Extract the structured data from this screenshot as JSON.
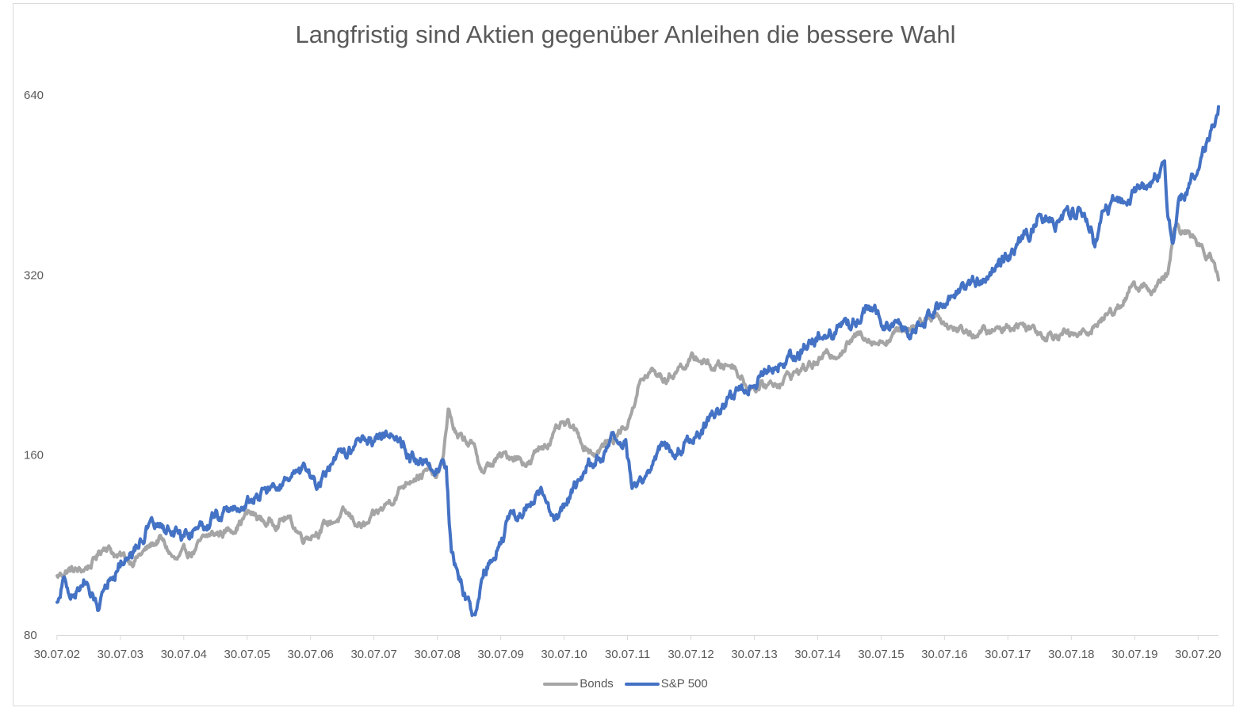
{
  "chart_data": {
    "type": "line",
    "title": "Langfristig sind Aktien gegenüber Anleihen die bessere Wahl",
    "xlabel": "",
    "ylabel": "",
    "y_scale": "log2",
    "ylim": [
      80,
      640
    ],
    "y_ticks": [
      "80",
      "160",
      "320",
      "640"
    ],
    "x_ticks": [
      "30.07.02",
      "30.07.03",
      "30.07.04",
      "30.07.05",
      "30.07.06",
      "30.07.07",
      "30.07.08",
      "30.07.09",
      "30.07.10",
      "30.07.11",
      "30.07.12",
      "30.07.13",
      "30.07.14",
      "30.07.15",
      "30.07.16",
      "30.07.17",
      "30.07.18",
      "30.07.19",
      "30.07.20"
    ],
    "x_range_years": [
      2002.58,
      2020.9
    ],
    "grid": false,
    "legend_position": "bottom",
    "series": [
      {
        "name": "Bonds",
        "color": "#a5a5a5",
        "points": [
          [
            2002.58,
            100
          ],
          [
            2002.75,
            103
          ],
          [
            2002.95,
            102
          ],
          [
            2003.15,
            106
          ],
          [
            2003.35,
            114
          ],
          [
            2003.55,
            108
          ],
          [
            2003.75,
            107
          ],
          [
            2004.0,
            111
          ],
          [
            2004.2,
            116
          ],
          [
            2004.45,
            106
          ],
          [
            2004.7,
            110
          ],
          [
            2005.0,
            117
          ],
          [
            2005.3,
            120
          ],
          [
            2005.6,
            128
          ],
          [
            2005.9,
            123
          ],
          [
            2006.2,
            126
          ],
          [
            2006.45,
            117
          ],
          [
            2006.8,
            122
          ],
          [
            2007.1,
            127
          ],
          [
            2007.45,
            121
          ],
          [
            2007.7,
            129
          ],
          [
            2007.95,
            139
          ],
          [
            2008.2,
            149
          ],
          [
            2008.45,
            150
          ],
          [
            2008.55,
            146
          ],
          [
            2008.65,
            152
          ],
          [
            2008.75,
            190
          ],
          [
            2008.9,
            170
          ],
          [
            2009.1,
            168
          ],
          [
            2009.3,
            150
          ],
          [
            2009.55,
            158
          ],
          [
            2009.8,
            160
          ],
          [
            2010.05,
            155
          ],
          [
            2010.2,
            165
          ],
          [
            2010.4,
            172
          ],
          [
            2010.55,
            178
          ],
          [
            2010.7,
            177
          ],
          [
            2010.85,
            168
          ],
          [
            2011.05,
            162
          ],
          [
            2011.3,
            168
          ],
          [
            2011.45,
            175
          ],
          [
            2011.6,
            182
          ],
          [
            2011.75,
            210
          ],
          [
            2011.95,
            220
          ],
          [
            2012.2,
            214
          ],
          [
            2012.45,
            228
          ],
          [
            2012.7,
            232
          ],
          [
            2012.95,
            224
          ],
          [
            2013.25,
            228
          ],
          [
            2013.45,
            210
          ],
          [
            2013.7,
            208
          ],
          [
            2014.0,
            214
          ],
          [
            2014.3,
            222
          ],
          [
            2014.6,
            230
          ],
          [
            2014.85,
            238
          ],
          [
            2015.1,
            248
          ],
          [
            2015.3,
            256
          ],
          [
            2015.55,
            248
          ],
          [
            2015.8,
            256
          ],
          [
            2016.05,
            264
          ],
          [
            2016.25,
            272
          ],
          [
            2016.45,
            276
          ],
          [
            2016.6,
            266
          ],
          [
            2016.8,
            260
          ],
          [
            2017.1,
            256
          ],
          [
            2017.4,
            258
          ],
          [
            2017.7,
            266
          ],
          [
            2017.95,
            262
          ],
          [
            2018.2,
            256
          ],
          [
            2018.45,
            258
          ],
          [
            2018.6,
            252
          ],
          [
            2018.8,
            256
          ],
          [
            2019.0,
            268
          ],
          [
            2019.3,
            282
          ],
          [
            2019.5,
            302
          ],
          [
            2019.7,
            306
          ],
          [
            2019.9,
            302
          ],
          [
            2020.1,
            318
          ],
          [
            2020.2,
            380
          ],
          [
            2020.4,
            375
          ],
          [
            2020.6,
            362
          ],
          [
            2020.75,
            350
          ],
          [
            2020.85,
            328
          ],
          [
            2020.9,
            314
          ]
        ]
      },
      {
        "name": "S&P 500",
        "color": "#4472c4",
        "points": [
          [
            2002.58,
            90
          ],
          [
            2002.68,
            100
          ],
          [
            2002.78,
            92
          ],
          [
            2002.88,
            95
          ],
          [
            2003.0,
            99
          ],
          [
            2003.12,
            92
          ],
          [
            2003.22,
            89
          ],
          [
            2003.35,
            99
          ],
          [
            2003.55,
            106
          ],
          [
            2003.75,
            110
          ],
          [
            2004.0,
            121
          ],
          [
            2004.3,
            121
          ],
          [
            2004.55,
            117
          ],
          [
            2004.8,
            123
          ],
          [
            2005.05,
            126
          ],
          [
            2005.3,
            129
          ],
          [
            2005.55,
            132
          ],
          [
            2005.8,
            138
          ],
          [
            2006.05,
            142
          ],
          [
            2006.35,
            146
          ],
          [
            2006.55,
            148
          ],
          [
            2006.65,
            142
          ],
          [
            2006.9,
            152
          ],
          [
            2007.2,
            163
          ],
          [
            2007.45,
            174
          ],
          [
            2007.6,
            170
          ],
          [
            2007.85,
            178
          ],
          [
            2008.05,
            168
          ],
          [
            2008.3,
            154
          ],
          [
            2008.45,
            152
          ],
          [
            2008.6,
            155
          ],
          [
            2008.72,
            150
          ],
          [
            2008.8,
            108
          ],
          [
            2008.95,
            100
          ],
          [
            2009.15,
            84
          ],
          [
            2009.3,
            103
          ],
          [
            2009.5,
            113
          ],
          [
            2009.7,
            124
          ],
          [
            2009.95,
            131
          ],
          [
            2010.2,
            138
          ],
          [
            2010.35,
            127
          ],
          [
            2010.55,
            128
          ],
          [
            2010.75,
            140
          ],
          [
            2011.0,
            156
          ],
          [
            2011.2,
            160
          ],
          [
            2011.4,
            168
          ],
          [
            2011.55,
            165
          ],
          [
            2011.65,
            139
          ],
          [
            2011.8,
            143
          ],
          [
            2011.95,
            155
          ],
          [
            2012.2,
            168
          ],
          [
            2012.4,
            168
          ],
          [
            2012.7,
            176
          ],
          [
            2012.9,
            183
          ],
          [
            2013.15,
            196
          ],
          [
            2013.4,
            207
          ],
          [
            2013.7,
            221
          ],
          [
            2014.0,
            232
          ],
          [
            2014.3,
            240
          ],
          [
            2014.6,
            252
          ],
          [
            2014.8,
            254
          ],
          [
            2015.1,
            268
          ],
          [
            2015.3,
            276
          ],
          [
            2015.55,
            277
          ],
          [
            2015.7,
            265
          ],
          [
            2015.85,
            270
          ],
          [
            2016.1,
            254
          ],
          [
            2016.35,
            278
          ],
          [
            2016.55,
            291
          ],
          [
            2016.75,
            294
          ],
          [
            2016.95,
            305
          ],
          [
            2017.2,
            320
          ],
          [
            2017.5,
            340
          ],
          [
            2017.75,
            358
          ],
          [
            2017.95,
            384
          ],
          [
            2018.1,
            412
          ],
          [
            2018.2,
            395
          ],
          [
            2018.35,
            396
          ],
          [
            2018.6,
            410
          ],
          [
            2018.75,
            415
          ],
          [
            2018.9,
            392
          ],
          [
            2018.95,
            356
          ],
          [
            2019.1,
            410
          ],
          [
            2019.35,
            428
          ],
          [
            2019.55,
            436
          ],
          [
            2019.8,
            456
          ],
          [
            2019.95,
            478
          ],
          [
            2020.05,
            483
          ],
          [
            2020.1,
            402
          ],
          [
            2020.17,
            362
          ],
          [
            2020.28,
            418
          ],
          [
            2020.45,
            458
          ],
          [
            2020.6,
            508
          ],
          [
            2020.75,
            540
          ],
          [
            2020.9,
            612
          ]
        ]
      }
    ]
  }
}
